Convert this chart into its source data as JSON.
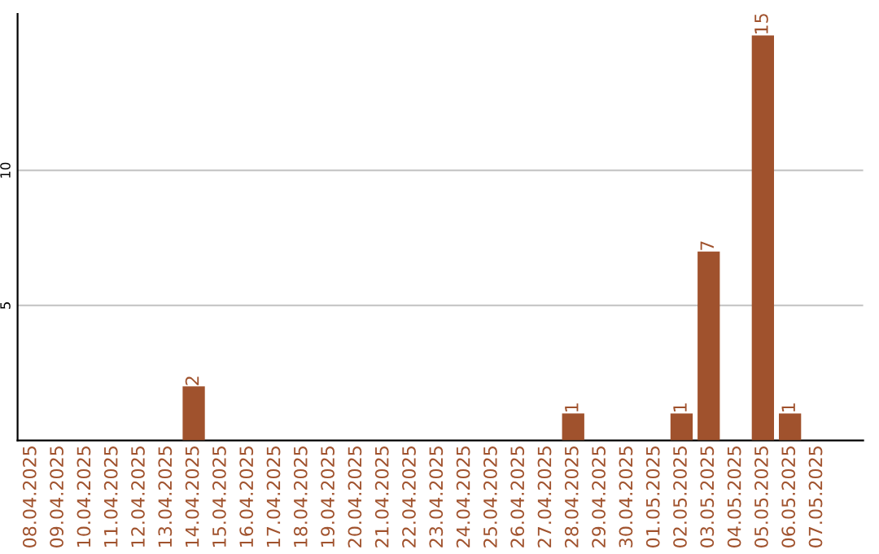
{
  "chart_data": {
    "type": "bar",
    "categories": [
      "08.04.2025",
      "09.04.2025",
      "10.04.2025",
      "11.04.2025",
      "12.04.2025",
      "13.04.2025",
      "14.04.2025",
      "15.04.2025",
      "16.04.2025",
      "17.04.2025",
      "18.04.2025",
      "19.04.2025",
      "20.04.2025",
      "21.04.2025",
      "22.04.2025",
      "23.04.2025",
      "24.04.2025",
      "25.04.2025",
      "26.04.2025",
      "27.04.2025",
      "28.04.2025",
      "29.04.2025",
      "30.04.2025",
      "01.05.2025",
      "02.05.2025",
      "03.05.2025",
      "04.05.2025",
      "05.05.2025",
      "06.05.2025",
      "07.05.2025"
    ],
    "values": [
      0,
      0,
      0,
      0,
      0,
      0,
      2,
      0,
      0,
      0,
      0,
      0,
      0,
      0,
      0,
      0,
      0,
      0,
      0,
      0,
      1,
      0,
      0,
      0,
      1,
      7,
      0,
      15,
      1,
      0
    ],
    "value_labels": [
      null,
      null,
      null,
      null,
      null,
      null,
      "2",
      null,
      null,
      null,
      null,
      null,
      null,
      null,
      null,
      null,
      null,
      null,
      null,
      null,
      "1",
      null,
      null,
      null,
      "1",
      "7",
      null,
      "15",
      "1",
      null
    ],
    "color": "#a0522d",
    "ylim": [
      0,
      15.8
    ],
    "yticks": [
      5,
      10
    ],
    "grid": "y",
    "legend": false
  }
}
